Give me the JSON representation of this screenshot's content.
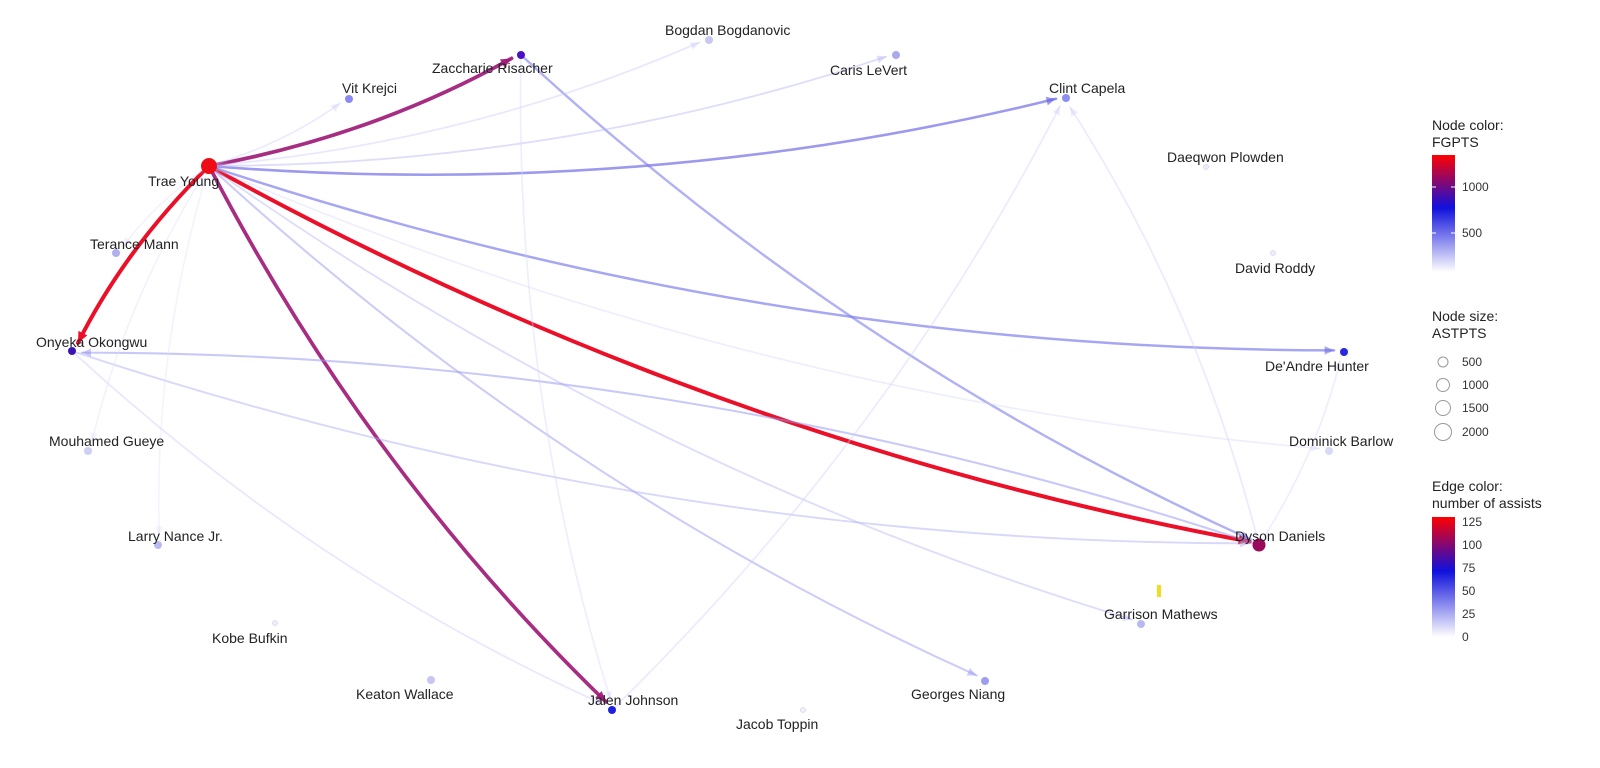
{
  "nodes": [
    {
      "id": "trae",
      "label": "Trae Young",
      "color": "#ee0d14",
      "size": "large"
    },
    {
      "id": "zacch",
      "label": "Zaccharie Risacher",
      "color": "#4c0fc8",
      "size": "small"
    },
    {
      "id": "bogdan",
      "label": "Bogdan Bogdanovic",
      "color": "#c8c8f0",
      "size": "small"
    },
    {
      "id": "caris",
      "label": "Caris LeVert",
      "color": "#a9a9ee",
      "size": "small"
    },
    {
      "id": "vit",
      "label": "Vit Krejci",
      "color": "#8a8af2",
      "size": "small"
    },
    {
      "id": "clint",
      "label": "Clint Capela",
      "color": "#8d8df3",
      "size": "small"
    },
    {
      "id": "daeqwon",
      "label": "Daeqwon Plowden",
      "color": "#ececfb",
      "size": "tiny"
    },
    {
      "id": "roddy",
      "label": "David Roddy",
      "color": "#eeeefa",
      "size": "tiny"
    },
    {
      "id": "terance",
      "label": "Terance Mann",
      "color": "#b0b0f1",
      "size": "small"
    },
    {
      "id": "onyeka",
      "label": "Onyeka Okongwu",
      "color": "#3a13b4",
      "size": "small"
    },
    {
      "id": "hunter",
      "label": "De'Andre Hunter",
      "color": "#2828e0",
      "size": "small"
    },
    {
      "id": "gueye",
      "label": "Mouhamed Gueye",
      "color": "#cfcff5",
      "size": "small"
    },
    {
      "id": "barlow",
      "label": "Dominick Barlow",
      "color": "#dadaf7",
      "size": "small"
    },
    {
      "id": "nance",
      "label": "Larry Nance Jr.",
      "color": "#babaf2",
      "size": "small"
    },
    {
      "id": "dyson",
      "label": "Dyson Daniels",
      "color": "#9b0a5a",
      "size": "medium"
    },
    {
      "id": "garrison",
      "label": "Garrison Mathews",
      "color": "#b9b9f1",
      "size": "small"
    },
    {
      "id": "bufkin",
      "label": "Kobe Bufkin",
      "color": "#efeffa",
      "size": "tiny"
    },
    {
      "id": "keaton",
      "label": "Keaton Wallace",
      "color": "#c6c6f3",
      "size": "small"
    },
    {
      "id": "jalen",
      "label": "Jalen Johnson",
      "color": "#2020e0",
      "size": "small"
    },
    {
      "id": "niang",
      "label": "Georges Niang",
      "color": "#9e9ef0",
      "size": "small"
    },
    {
      "id": "toppin",
      "label": "Jacob Toppin",
      "color": "#f0f0fa",
      "size": "tiny"
    }
  ],
  "edges": [
    {
      "from": "trae",
      "to": "zacch",
      "assists": 110
    },
    {
      "from": "trae",
      "to": "onyeka",
      "assists": 125
    },
    {
      "from": "trae",
      "to": "dyson",
      "assists": 125
    },
    {
      "from": "trae",
      "to": "jalen",
      "assists": 110
    },
    {
      "from": "trae",
      "to": "clint",
      "assists": 55
    },
    {
      "from": "trae",
      "to": "hunter",
      "assists": 50
    },
    {
      "from": "zacch",
      "to": "dyson",
      "assists": 45
    },
    {
      "from": "trae",
      "to": "caris",
      "assists": 18
    },
    {
      "from": "trae",
      "to": "bogdan",
      "assists": 12
    },
    {
      "from": "trae",
      "to": "vit",
      "assists": 10
    },
    {
      "from": "trae",
      "to": "niang",
      "assists": 28
    },
    {
      "from": "trae",
      "to": "garrison",
      "assists": 18
    },
    {
      "from": "trae",
      "to": "barlow",
      "assists": 8
    },
    {
      "from": "onyeka",
      "to": "dyson",
      "assists": 22
    },
    {
      "from": "dyson",
      "to": "onyeka",
      "assists": 30
    },
    {
      "from": "onyeka",
      "to": "jalen",
      "assists": 12
    },
    {
      "from": "jalen",
      "to": "clint",
      "assists": 10
    },
    {
      "from": "dyson",
      "to": "clint",
      "assists": 10
    },
    {
      "from": "dyson",
      "to": "hunter",
      "assists": 8
    },
    {
      "from": "zacch",
      "to": "jalen",
      "assists": 8
    },
    {
      "from": "trae",
      "to": "terance",
      "assists": 5
    },
    {
      "from": "trae",
      "to": "gueye",
      "assists": 5
    },
    {
      "from": "trae",
      "to": "nance",
      "assists": 4
    }
  ],
  "legend": {
    "node_color": {
      "title_line1": "Node color:",
      "title_line2": "FGPTS",
      "ticks": [
        "1000",
        "500"
      ],
      "top_color": "#ff0000",
      "mid_color": "#1010dd",
      "bottom_color": "#ffffff"
    },
    "node_size": {
      "title_line1": "Node size:",
      "title_line2": "ASTPTS",
      "ticks": [
        "500",
        "1000",
        "1500",
        "2000"
      ]
    },
    "edge_color": {
      "title_line1": "Edge color:",
      "title_line2": "number of assists",
      "ticks": [
        "125",
        "100",
        "75",
        "50",
        "25",
        "0"
      ],
      "top_color": "#ff0000",
      "mid_color": "#1010dd",
      "bottom_color": "#ffffff"
    }
  }
}
